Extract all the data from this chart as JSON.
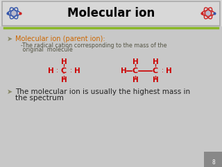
{
  "title": "Molecular ion",
  "title_color": "#000000",
  "slide_bg": "#c8c8c8",
  "header_bg": "#d8d8d8",
  "content_bg": "#d0d0d0",
  "green_line_color": "#8ab828",
  "bullet1_text": "Molecular ion (parent ion):",
  "bullet1_color": "#cc6600",
  "sub1_line1": "-The radical cation corresponding to the mass of the",
  "sub1_line2": " original  molecule",
  "sub1_color": "#555544",
  "bullet2_line1": "The molecular ion is usually the highest mass in",
  "bullet2_line2": "the spectrum",
  "bullet2_color": "#222222",
  "page_num": "8",
  "atom_color": "#cc0000",
  "header_border_color": "#aaaaaa",
  "bullet_color": "#888866"
}
